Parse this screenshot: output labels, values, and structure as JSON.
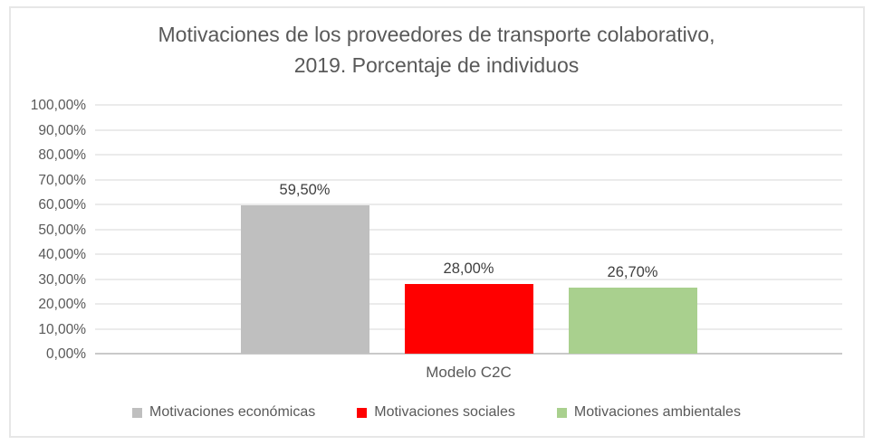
{
  "chart_data": {
    "type": "bar",
    "title": "Motivaciones de los proveedores de transporte colaborativo,\n2019. Porcentaje de individuos",
    "categories": [
      "Modelo C2C"
    ],
    "series": [
      {
        "id": "economicas",
        "name": "Motivaciones económicas",
        "values": [
          59.5
        ],
        "label": "59,50%",
        "color": "#bfbfbf"
      },
      {
        "id": "sociales",
        "name": "Motivaciones sociales",
        "values": [
          28.0
        ],
        "label": "28,00%",
        "color": "#ff0000"
      },
      {
        "id": "ambientales",
        "name": "Motivaciones ambientales",
        "values": [
          26.7
        ],
        "label": "26,70%",
        "color": "#a9d08e"
      }
    ],
    "xlabel": "",
    "ylabel": "",
    "ylim": [
      0,
      100
    ],
    "ytick_step": 10,
    "ytick_labels": [
      "0,00%",
      "10,00%",
      "20,00%",
      "30,00%",
      "40,00%",
      "50,00%",
      "60,00%",
      "70,00%",
      "80,00%",
      "90,00%",
      "100,00%"
    ],
    "grid": true,
    "legend_position": "bottom",
    "colors": {
      "title_text": "#595959",
      "axis_text": "#595959",
      "data_label_text": "#3f3f3f",
      "gridline": "#ebebeb",
      "axis_line": "#c9c9c9",
      "frame_border": "#e7e7e7",
      "background": "#ffffff"
    }
  }
}
